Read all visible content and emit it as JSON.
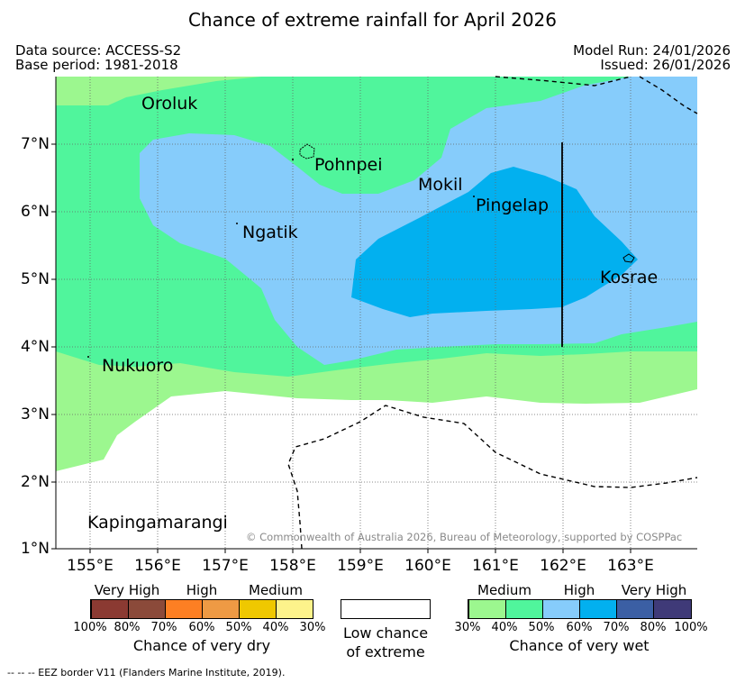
{
  "title": "Chance of extreme rainfall for April 2026",
  "header": {
    "data_source": "Data source: ACCESS-S2",
    "base_period": "Base period: 1981-2018",
    "model_run": "Model Run: 24/01/2026",
    "issued": "Issued: 26/01/2026"
  },
  "map": {
    "lon_labels": [
      "155°E",
      "156°E",
      "157°E",
      "158°E",
      "159°E",
      "160°E",
      "161°E",
      "162°E",
      "163°E"
    ],
    "lat_labels": [
      "1°N",
      "2°N",
      "3°N",
      "4°N",
      "5°N",
      "6°N",
      "7°N"
    ],
    "places": {
      "oroluk": "Oroluk",
      "pohnpei": "Pohnpei",
      "mokil": "Mokil",
      "pingelap": "Pingelap",
      "ngatik": "Ngatik",
      "kosrae": "Kosrae",
      "nukuoro": "Nukuoro",
      "kapingamarangi": "Kapingamarangi"
    },
    "copyright": "© Commonwealth of Australia 2026, Bureau of Meteorology, supported by COSPPac",
    "colors": {
      "low": "#ffffff",
      "medium_wet": "#9cf78f",
      "mid_wet": "#50f59c",
      "high_wet": "#86ccfb",
      "higher_wet": "#02b0ef"
    }
  },
  "legend": {
    "dry": {
      "headers": [
        "Very High",
        "High",
        "Medium"
      ],
      "ticks": [
        "100%",
        "80%",
        "70%",
        "60%",
        "50%",
        "40%",
        "30%"
      ],
      "caption": "Chance of very dry",
      "colors": [
        "#8b3a32",
        "#8b4a3a",
        "#fd7f23",
        "#ee9a44",
        "#efc800",
        "#fdf38b"
      ]
    },
    "low": {
      "line1": "Low chance",
      "line2": "of extreme"
    },
    "wet": {
      "headers": [
        "Medium",
        "High",
        "Very High"
      ],
      "ticks": [
        "30%",
        "40%",
        "50%",
        "60%",
        "70%",
        "80%",
        "100%"
      ],
      "caption": "Chance of very wet",
      "colors": [
        "#9cf78f",
        "#50f59c",
        "#86ccfb",
        "#02b0ef",
        "#3b5fa4",
        "#3f3a78"
      ]
    }
  },
  "footnote": "--  --  -- EEZ border V11 (Flanders Marine Institute, 2019)."
}
